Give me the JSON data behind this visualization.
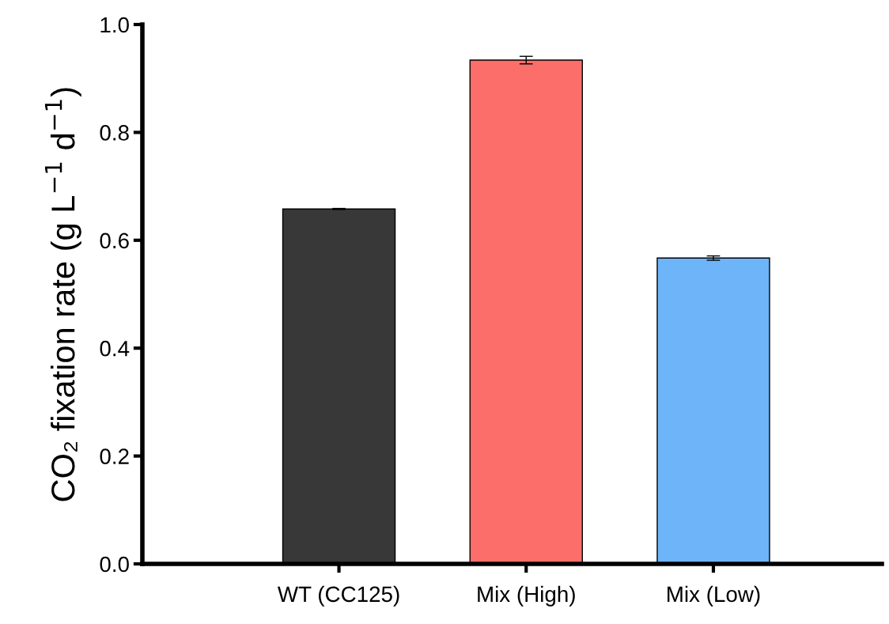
{
  "chart_data": {
    "type": "bar",
    "ylabel": "CO₂ fixation rate (g L$^{−1}$ d$^{−1}$)",
    "categories": [
      "WT (CC125)",
      "Mix (High)",
      "Mix (Low)"
    ],
    "values": [
      0.658,
      0.934,
      0.567
    ],
    "errors": [
      0.001,
      0.007,
      0.004
    ],
    "colors": [
      "#383838",
      "#fc6e6a",
      "#6db4f8"
    ],
    "ylim": [
      0,
      1.0
    ],
    "yticks": [
      {
        "value": 0,
        "label": "0.0"
      },
      {
        "value": 0.2,
        "label": "0.2"
      },
      {
        "value": 0.4,
        "label": "0.4"
      },
      {
        "value": 0.6,
        "label": "0.6"
      },
      {
        "value": 0.8,
        "label": "0.8"
      },
      {
        "value": 1.0,
        "label": "1.0"
      }
    ],
    "grid": false,
    "legend": false
  }
}
